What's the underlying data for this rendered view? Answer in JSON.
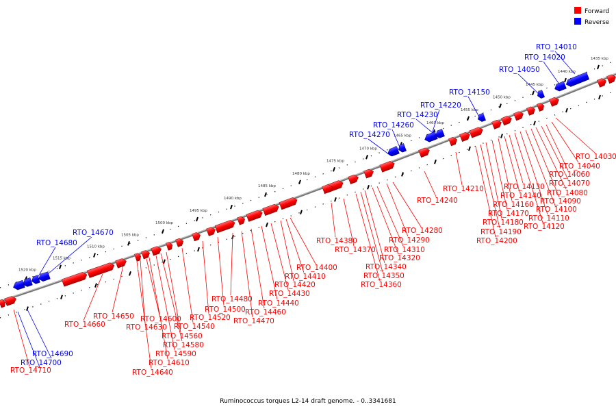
{
  "caption": "Ruminococcus torques L2-14 draft genome. - 0..3341681",
  "legend": [
    {
      "label": "Forward",
      "color": "#ff0000"
    },
    {
      "label": "Reverse",
      "color": "#0000ff"
    }
  ],
  "colors": {
    "forward": "#ff0000",
    "reverse": "#0000ff",
    "backbone": "#888888",
    "ticks": "#000000"
  },
  "ticks": [
    "1435 kbp",
    "1440 kbp",
    "1445 kbp",
    "1450 kbp",
    "1455 kbp",
    "1460 kbp",
    "1465 kbp",
    "1470 kbp",
    "1475 kbp",
    "1480 kbp",
    "1485 kbp",
    "1490 kbp",
    "1495 kbp",
    "1500 kbp",
    "1505 kbp",
    "1510 kbp",
    "1515 kbp",
    "1520 kbp"
  ],
  "reverse_labels": [
    "RTO_14010",
    "RTO_14020",
    "RTO_14050",
    "RTO_14150",
    "RTO_14220",
    "RTO_14230",
    "RTO_14260",
    "RTO_14270",
    "RTO_14670",
    "RTO_14680",
    "RTO_14690",
    "RTO_14700"
  ],
  "forward_labels": [
    "RTO_14030",
    "RTO_14040",
    "RTO_14060",
    "RTO_14070",
    "RTO_14080",
    "RTO_14090",
    "RTO_14100",
    "RTO_14110",
    "RTO_14120",
    "RTO_14130",
    "RTO_14140",
    "RTO_14160",
    "RTO_14170",
    "RTO_14180",
    "RTO_14190",
    "RTO_14200",
    "RTO_14210",
    "RTO_14240",
    "RTO_14280",
    "RTO_14290",
    "RTO_14310",
    "RTO_14320",
    "RTO_14340",
    "RTO_14350",
    "RTO_14360",
    "RTO_14370",
    "RTO_14380",
    "RTO_14400",
    "RTO_14410",
    "RTO_14420",
    "RTO_14430",
    "RTO_14440",
    "RTO_14460",
    "RTO_14470",
    "RTO_14480",
    "RTO_14500",
    "RTO_14520",
    "RTO_14540",
    "RTO_14560",
    "RTO_14580",
    "RTO_14590",
    "RTO_14600",
    "RTO_14610",
    "RTO_14630",
    "RTO_14640",
    "RTO_14650",
    "RTO_14660",
    "RTO_14710"
  ]
}
